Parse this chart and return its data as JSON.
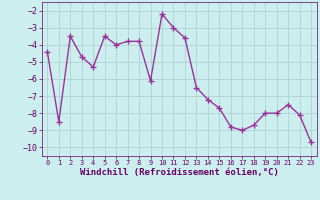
{
  "x": [
    0,
    1,
    2,
    3,
    4,
    5,
    6,
    7,
    8,
    9,
    10,
    11,
    12,
    13,
    14,
    15,
    16,
    17,
    18,
    19,
    20,
    21,
    22,
    23
  ],
  "y": [
    -4.4,
    -8.5,
    -3.5,
    -4.7,
    -5.3,
    -3.5,
    -4.0,
    -3.8,
    -3.8,
    -6.1,
    -2.2,
    -3.0,
    -3.6,
    -6.5,
    -7.2,
    -7.7,
    -8.8,
    -9.0,
    -8.7,
    -8.0,
    -8.0,
    -7.5,
    -8.1,
    -9.7
  ],
  "line_color": "#993399",
  "marker": "+",
  "marker_size": 4,
  "bg_color": "#cceeee",
  "grid_color": "#aacccc",
  "xlabel": "Windchill (Refroidissement éolien,°C)",
  "xlabel_color": "#660066",
  "tick_color": "#660066",
  "spine_color": "#660066",
  "ylim": [
    -10.5,
    -1.5
  ],
  "xlim": [
    -0.5,
    23.5
  ],
  "yticks": [
    -10,
    -9,
    -8,
    -7,
    -6,
    -5,
    -4,
    -3,
    -2
  ],
  "xticks": [
    0,
    1,
    2,
    3,
    4,
    5,
    6,
    7,
    8,
    9,
    10,
    11,
    12,
    13,
    14,
    15,
    16,
    17,
    18,
    19,
    20,
    21,
    22,
    23
  ],
  "linewidth": 1.0,
  "tick_fontsize": 6.0,
  "xlabel_fontsize": 6.5,
  "marker_color": "#993399"
}
